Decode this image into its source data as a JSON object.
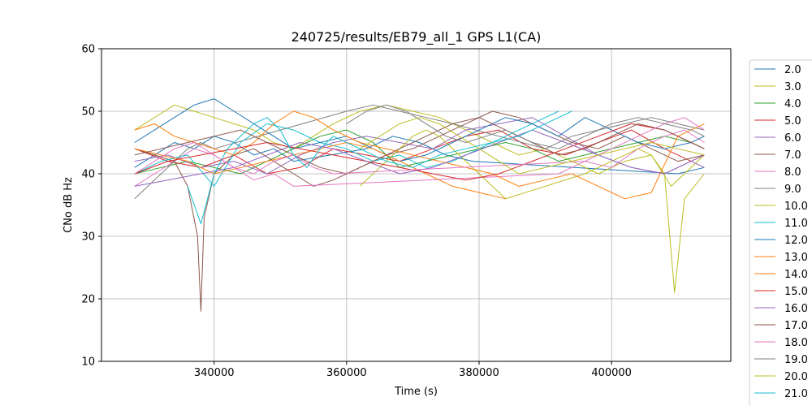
{
  "chart_data": {
    "type": "line",
    "title": "240725/results/EB79_all_1 GPS L1(CA)",
    "xlabel": "Time (s)",
    "ylabel": "CNo dB Hz",
    "xlim": [
      323000,
      418000
    ],
    "ylim": [
      10,
      60
    ],
    "x_ticks": [
      340000,
      360000,
      380000,
      400000
    ],
    "x_tick_labels": [
      "340000",
      "360000",
      "380000",
      "400000"
    ],
    "y_ticks": [
      10,
      20,
      30,
      40,
      50,
      60
    ],
    "y_tick_labels": [
      "10",
      "20",
      "30",
      "40",
      "50",
      "60"
    ],
    "grid": true,
    "legend_placement": "right-outside",
    "series": [
      {
        "name": "2.0",
        "color": "#1f77b4",
        "x": [
          328000,
          331000,
          334000,
          337000,
          340000,
          343000,
          346000,
          349000,
          352000,
          363000,
          367000,
          371000,
          375000,
          379000,
          410000,
          414000
        ],
        "y": [
          41,
          43,
          45,
          44,
          46,
          45,
          43,
          44,
          42,
          44,
          46,
          45,
          43,
          42,
          40,
          41
        ]
      },
      {
        "name": "3.0",
        "color": "#bcbd22",
        "x": [
          328000,
          331000,
          334000,
          337000,
          340000,
          343000,
          346000,
          349000,
          352000,
          355000,
          358000,
          362000,
          366000,
          370000,
          374000,
          378000,
          382000,
          386000,
          390000,
          394000,
          398000,
          402000,
          406000,
          409000,
          412000,
          414000
        ],
        "y": [
          47,
          49,
          51,
          50,
          49,
          48,
          47,
          45,
          44,
          46,
          48,
          50,
          51,
          50,
          49,
          47,
          45,
          43,
          44,
          42,
          40,
          42,
          43,
          38,
          41,
          43
        ]
      },
      {
        "name": "4.0",
        "color": "#2ca02c",
        "x": [
          328000,
          332000,
          336000,
          340000,
          344000,
          348000,
          352000,
          356000,
          360000,
          364000,
          368000,
          372000,
          376000,
          380000,
          384000,
          388000,
          392000,
          396000,
          400000,
          404000,
          408000,
          412000,
          414000
        ],
        "y": [
          40,
          41,
          42,
          41,
          40,
          42,
          44,
          46,
          47,
          45,
          41,
          42,
          43,
          44,
          45,
          44,
          42,
          43,
          44,
          45,
          46,
          45,
          44
        ]
      },
      {
        "name": "5.0",
        "color": "#d62728",
        "x": [
          328000,
          333000,
          338000,
          343000,
          348000,
          353000,
          358000,
          363000,
          368000,
          373000,
          378000,
          383000,
          388000,
          393000,
          398000,
          403000,
          408000,
          412000,
          414000
        ],
        "y": [
          44,
          42,
          41,
          43,
          40,
          41,
          44,
          43,
          42,
          44,
          46,
          47,
          44,
          43,
          45,
          47,
          44,
          42,
          43
        ]
      },
      {
        "name": "6.0",
        "color": "#9467bd",
        "x": [
          328000,
          333000,
          338000,
          343000,
          348000,
          353000,
          358000,
          363000,
          368000,
          373000,
          378000,
          383000,
          388000,
          393000,
          398000,
          403000,
          408000,
          412000,
          414000
        ],
        "y": [
          42,
          43,
          41,
          42,
          40,
          43,
          45,
          46,
          45,
          44,
          47,
          48,
          49,
          46,
          43,
          41,
          40,
          42,
          41
        ]
      },
      {
        "name": "7.0",
        "color": "#8c564b",
        "x": [
          328000,
          331000,
          334000,
          336000,
          337500,
          338000,
          338500,
          340000,
          343000,
          346000,
          349000,
          352000,
          355000,
          358000,
          362000,
          366000,
          370000,
          374000,
          378000,
          382000,
          386000,
          390000,
          394000,
          398000,
          402000,
          406000,
          410000,
          414000
        ],
        "y": [
          44,
          43,
          42,
          38,
          30,
          18,
          33,
          40,
          43,
          44,
          42,
          40,
          38,
          39,
          41,
          43,
          44,
          46,
          48,
          50,
          49,
          47,
          45,
          44,
          46,
          44,
          42,
          43
        ]
      },
      {
        "name": "8.0",
        "color": "#e377c2",
        "x": [
          328000,
          331000,
          334000,
          337000,
          340000,
          343000,
          346000,
          349000,
          352000,
          392000,
          396000,
          400000,
          404000,
          408000,
          411000,
          414000
        ],
        "y": [
          38,
          40,
          42,
          44,
          43,
          41,
          39,
          40,
          38,
          40,
          42,
          41,
          44,
          46,
          47,
          45
        ]
      },
      {
        "name": "9.0",
        "color": "#7f7f7f",
        "x": [
          328000,
          330000,
          332000,
          334000,
          336000,
          338000,
          340000,
          360000,
          364000,
          368000,
          372000,
          376000,
          390000,
          394000,
          398000,
          402000,
          406000,
          410000,
          414000
        ],
        "y": [
          36,
          38,
          40,
          42,
          44,
          45,
          44,
          50,
          51,
          50,
          49,
          48,
          44,
          46,
          47,
          48,
          49,
          48,
          47
        ]
      },
      {
        "name": "10.0",
        "color": "#bcbd22",
        "x": [
          362000,
          364000,
          366000,
          368000,
          370000,
          372000,
          374000,
          376000,
          378000,
          380000,
          382000,
          384000,
          396000,
          400000,
          404000,
          406000,
          408000,
          409500,
          411000,
          414000
        ],
        "y": [
          38,
          40,
          42,
          44,
          46,
          47,
          46,
          44,
          42,
          40,
          38,
          36,
          40,
          42,
          44,
          43,
          40,
          21,
          36,
          40
        ]
      },
      {
        "name": "11.0",
        "color": "#17becf",
        "x": [
          328000,
          332000,
          336000,
          340000,
          344000,
          348000,
          352000,
          356000,
          360000,
          364000,
          368000,
          372000,
          376000,
          380000,
          384000,
          388000,
          392000
        ],
        "y": [
          40,
          42,
          43,
          38,
          45,
          48,
          47,
          45,
          44,
          42,
          43,
          41,
          42,
          44,
          46,
          48,
          50
        ]
      },
      {
        "name": "12.0",
        "color": "#1f77b4",
        "x": [
          328000,
          331000,
          334000,
          337000,
          340000,
          343000,
          346000,
          349000,
          352000,
          356000,
          360000,
          364000,
          368000,
          372000,
          376000,
          380000,
          384000,
          388000,
          392000,
          396000,
          400000,
          404000,
          408000,
          412000,
          414000
        ],
        "y": [
          45,
          47,
          49,
          51,
          52,
          50,
          48,
          46,
          44,
          45,
          46,
          44,
          42,
          43,
          45,
          47,
          49,
          48,
          46,
          49,
          47,
          45,
          44,
          45,
          46
        ]
      },
      {
        "name": "13.0",
        "color": "#ff7f0e",
        "x": [
          328000,
          331000,
          334000,
          337000,
          340000,
          343000,
          346000,
          349000,
          352000,
          355000,
          358000,
          362000,
          382000,
          386000,
          390000,
          394000,
          398000,
          402000,
          406000,
          410000,
          414000
        ],
        "y": [
          47,
          48,
          46,
          45,
          44,
          43,
          45,
          48,
          50,
          49,
          47,
          45,
          40,
          38,
          39,
          40,
          38,
          36,
          37,
          46,
          48
        ]
      },
      {
        "name": "14.0",
        "color": "#ff7f0e",
        "x": [
          328000,
          332000,
          336000,
          340000,
          344000,
          348000,
          352000,
          356000,
          360000,
          364000,
          368000,
          372000,
          376000,
          380000,
          384000
        ],
        "y": [
          44,
          43,
          42,
          40,
          41,
          42,
          43,
          44,
          45,
          44,
          42,
          40,
          38,
          37,
          36
        ]
      },
      {
        "name": "15.0",
        "color": "#d62728",
        "x": [
          328000,
          333000,
          338000,
          343000,
          348000,
          353000,
          358000,
          363000,
          368000,
          373000,
          378000,
          383000,
          388000,
          393000,
          398000,
          403000,
          408000,
          412000,
          414000
        ],
        "y": [
          40,
          42,
          43,
          44,
          45,
          44,
          43,
          42,
          41,
          40,
          39,
          40,
          42,
          44,
          46,
          48,
          47,
          45,
          44
        ]
      },
      {
        "name": "16.0",
        "color": "#9467bd",
        "x": [
          328000,
          333000,
          338000,
          343000,
          348000,
          353000,
          358000,
          363000,
          368000,
          373000,
          378000,
          383000,
          388000,
          393000,
          398000,
          403000,
          408000,
          412000,
          414000
        ],
        "y": [
          38,
          39,
          40,
          41,
          43,
          45,
          44,
          42,
          40,
          41,
          43,
          45,
          47,
          45,
          43,
          41,
          40,
          42,
          43
        ]
      },
      {
        "name": "17.0",
        "color": "#8c564b",
        "x": [
          328000,
          332000,
          336000,
          340000,
          344000,
          348000,
          352000,
          356000,
          360000,
          364000,
          368000,
          372000,
          376000,
          380000,
          384000,
          388000,
          392000,
          396000,
          400000,
          404000,
          408000,
          412000,
          414000
        ],
        "y": [
          43,
          44,
          45,
          46,
          47,
          45,
          43,
          41,
          40,
          42,
          44,
          46,
          48,
          49,
          47,
          45,
          43,
          44,
          46,
          48,
          47,
          45,
          44
        ]
      },
      {
        "name": "18.0",
        "color": "#e377c2",
        "x": [
          328000,
          331000,
          334000,
          337000,
          340000,
          343000,
          346000,
          349000,
          352000,
          355000,
          358000,
          396000,
          400000,
          404000,
          408000,
          411000,
          414000
        ],
        "y": [
          40,
          42,
          44,
          45,
          43,
          41,
          40,
          42,
          43,
          41,
          40,
          42,
          44,
          46,
          48,
          49,
          47
        ]
      },
      {
        "name": "19.0",
        "color": "#7f7f7f",
        "x": [
          360000,
          363000,
          366000,
          369000,
          372000,
          375000,
          378000,
          381000,
          384000,
          388000,
          392000,
          396000,
          400000,
          404000,
          408000,
          412000,
          414000
        ],
        "y": [
          48,
          50,
          51,
          50,
          48,
          46,
          45,
          46,
          47,
          45,
          44,
          46,
          48,
          49,
          48,
          47,
          46
        ]
      },
      {
        "name": "20.0",
        "color": "#bcbd22",
        "x": [
          362000,
          365000,
          368000,
          371000,
          374000,
          377000,
          380000,
          383000,
          386000,
          390000,
          394000,
          398000,
          402000,
          406000,
          410000,
          414000
        ],
        "y": [
          44,
          46,
          48,
          49,
          48,
          46,
          44,
          42,
          40,
          41,
          42,
          43,
          44,
          45,
          44,
          43
        ]
      },
      {
        "name": "21.0",
        "color": "#17becf",
        "x": [
          336000,
          338000,
          340000,
          342000,
          344000,
          346000,
          348000,
          350000,
          352000,
          354000,
          356000,
          358000,
          362000,
          366000,
          370000,
          374000,
          378000,
          382000,
          386000,
          390000,
          394000
        ],
        "y": [
          38,
          32,
          40,
          44,
          46,
          48,
          49,
          47,
          43,
          41,
          44,
          46,
          44,
          42,
          41,
          43,
          44,
          45,
          46,
          48,
          50
        ]
      }
    ]
  }
}
